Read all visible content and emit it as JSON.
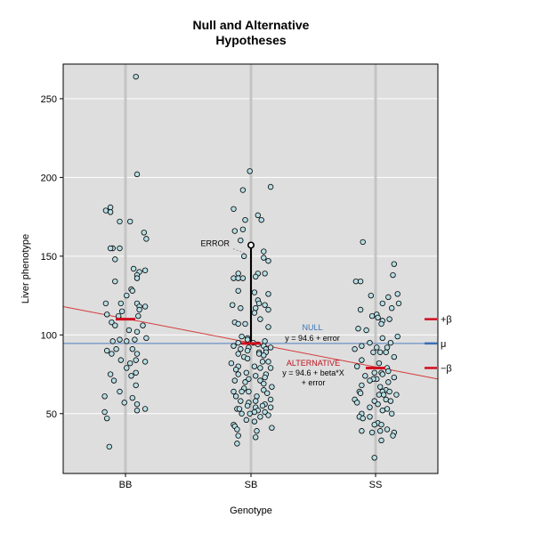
{
  "chart_data": {
    "type": "scatter",
    "title_lines": [
      "Null and Alternative",
      "Hypotheses"
    ],
    "xlabel": "Genotype",
    "ylabel": "Liver phenotype",
    "categories": [
      "BB",
      "SB",
      "SS"
    ],
    "ylim": [
      12,
      272
    ],
    "y_ticks": [
      50,
      100,
      150,
      200,
      250
    ],
    "grid": true,
    "colors": {
      "panel": "#dedede",
      "grid": "#ffffff",
      "category_line": "#c4c4c4",
      "point_fill": "#b6dde4",
      "point_stroke": "#000000",
      "null_line": "#4f7fc0",
      "alt_line": "#d63a3a",
      "group_mean": "#d10f1f",
      "null_text": "#3c74b7",
      "alt_text": "#c0141f"
    },
    "null_model": {
      "y": 94.6,
      "label": "NULL",
      "equation": "y = 94.6 + error"
    },
    "alternative_model": {
      "label": "ALTERNATIVE",
      "equation_line1": "y = 94.6 + beta*X",
      "equation_line2": "+ error",
      "line_start_y": 118,
      "line_end_y": 72
    },
    "group_means": [
      {
        "category": "BB",
        "y": 110
      },
      {
        "category": "SB",
        "y": 94.6
      },
      {
        "category": "SS",
        "y": 79
      }
    ],
    "error_example": {
      "label": "ERROR",
      "category": "SB",
      "x_offset": 0,
      "y": 157,
      "to_y": 94.6
    },
    "right_markers": [
      {
        "label": "+β",
        "y": 110,
        "color": "#d10f1f"
      },
      {
        "label": "μ",
        "y": 94.6,
        "color": "#3a6fb5"
      },
      {
        "label": "−β",
        "y": 79,
        "color": "#d10f1f"
      }
    ],
    "series": [
      {
        "category": "BB",
        "points": [
          [
            0.09,
            264
          ],
          [
            0.1,
            202
          ],
          [
            -0.13,
            181
          ],
          [
            -0.13,
            178
          ],
          [
            -0.17,
            179
          ],
          [
            -0.05,
            172
          ],
          [
            0.04,
            172
          ],
          [
            0.16,
            165
          ],
          [
            0.18,
            161
          ],
          [
            -0.05,
            155
          ],
          [
            -0.11,
            155
          ],
          [
            -0.13,
            155
          ],
          [
            -0.09,
            148
          ],
          [
            0.07,
            142
          ],
          [
            0.17,
            141
          ],
          [
            0.12,
            140
          ],
          [
            0.1,
            138
          ],
          [
            0.1,
            136
          ],
          [
            -0.09,
            134
          ],
          [
            0.05,
            129
          ],
          [
            0.06,
            128
          ],
          [
            0.01,
            125
          ],
          [
            -0.17,
            120
          ],
          [
            0.1,
            120
          ],
          [
            -0.04,
            120
          ],
          [
            0.17,
            118
          ],
          [
            0.12,
            118
          ],
          [
            0.12,
            116
          ],
          [
            -0.03,
            115
          ],
          [
            -0.16,
            113
          ],
          [
            0.11,
            112
          ],
          [
            -0.06,
            112
          ],
          [
            -0.12,
            108
          ],
          [
            0.15,
            106
          ],
          [
            -0.09,
            106
          ],
          [
            0.03,
            103
          ],
          [
            0.1,
            102
          ],
          [
            0.18,
            98
          ],
          [
            -0.05,
            97
          ],
          [
            0.08,
            97
          ],
          [
            0.01,
            96
          ],
          [
            -0.11,
            96
          ],
          [
            -0.08,
            91
          ],
          [
            0.06,
            91
          ],
          [
            -0.16,
            90
          ],
          [
            -0.12,
            88
          ],
          [
            0.1,
            88
          ],
          [
            0.09,
            84
          ],
          [
            -0.04,
            84
          ],
          [
            0.17,
            83
          ],
          [
            0.04,
            82
          ],
          [
            0.01,
            79
          ],
          [
            0.09,
            76
          ],
          [
            -0.13,
            75
          ],
          [
            0.05,
            74
          ],
          [
            -0.1,
            71
          ],
          [
            0.09,
            68
          ],
          [
            -0.05,
            64
          ],
          [
            -0.18,
            61
          ],
          [
            0.06,
            60
          ],
          [
            -0.01,
            57
          ],
          [
            0.1,
            56
          ],
          [
            0.17,
            53
          ],
          [
            0.1,
            52
          ],
          [
            -0.18,
            51
          ],
          [
            -0.16,
            47
          ],
          [
            -0.14,
            29
          ]
        ]
      },
      {
        "category": "SB",
        "points": [
          [
            -0.01,
            204
          ],
          [
            0.17,
            194
          ],
          [
            -0.07,
            192
          ],
          [
            -0.15,
            180
          ],
          [
            0.06,
            176
          ],
          [
            0.09,
            173
          ],
          [
            -0.05,
            173
          ],
          [
            -0.07,
            167
          ],
          [
            -0.14,
            166
          ],
          [
            -0.09,
            160
          ],
          [
            0.11,
            153
          ],
          [
            -0.06,
            150
          ],
          [
            0.11,
            149
          ],
          [
            0.15,
            147
          ],
          [
            0.12,
            139
          ],
          [
            -0.11,
            139
          ],
          [
            0.06,
            139
          ],
          [
            0.04,
            137
          ],
          [
            -0.15,
            136
          ],
          [
            -0.11,
            136
          ],
          [
            -0.07,
            136
          ],
          [
            -0.11,
            128
          ],
          [
            0.03,
            127
          ],
          [
            0.15,
            126
          ],
          [
            0.06,
            122
          ],
          [
            0.07,
            120
          ],
          [
            0.12,
            119
          ],
          [
            -0.16,
            119
          ],
          [
            -0.09,
            117
          ],
          [
            0.04,
            117
          ],
          [
            0.15,
            116
          ],
          [
            0.03,
            114
          ],
          [
            0.08,
            110
          ],
          [
            -0.14,
            108
          ],
          [
            -0.11,
            107
          ],
          [
            -0.05,
            107
          ],
          [
            0.15,
            105
          ],
          [
            -0.08,
            99
          ],
          [
            -0.03,
            98
          ],
          [
            -0.03,
            97
          ],
          [
            0.12,
            96
          ],
          [
            -0.11,
            95
          ],
          [
            0.02,
            95
          ],
          [
            0.06,
            94
          ],
          [
            -0.15,
            93
          ],
          [
            0.11,
            93
          ],
          [
            0.17,
            92
          ],
          [
            -0.02,
            92
          ],
          [
            -0.09,
            91
          ],
          [
            0.13,
            91
          ],
          [
            -0.03,
            90
          ],
          [
            0.07,
            89
          ],
          [
            0.13,
            89
          ],
          [
            -0.11,
            88
          ],
          [
            0.07,
            88
          ],
          [
            0.11,
            87
          ],
          [
            -0.06,
            86
          ],
          [
            -0.03,
            85
          ],
          [
            0.1,
            83
          ],
          [
            0.15,
            83
          ],
          [
            -0.17,
            82
          ],
          [
            0.03,
            80
          ],
          [
            -0.11,
            80
          ],
          [
            0.08,
            79
          ],
          [
            0.17,
            79
          ],
          [
            -0.13,
            78
          ],
          [
            -0.04,
            76
          ],
          [
            -0.11,
            75
          ],
          [
            0.13,
            75
          ],
          [
            0.04,
            74
          ],
          [
            0.12,
            73
          ],
          [
            -0.02,
            72
          ],
          [
            -0.14,
            71
          ],
          [
            0.08,
            71
          ],
          [
            -0.05,
            70
          ],
          [
            0.11,
            69
          ],
          [
            0.18,
            67
          ],
          [
            -0.06,
            66
          ],
          [
            0.11,
            65
          ],
          [
            -0.15,
            64
          ],
          [
            -0.08,
            64
          ],
          [
            -0.02,
            64
          ],
          [
            0.14,
            63
          ],
          [
            -0.13,
            61
          ],
          [
            0.05,
            61
          ],
          [
            0.17,
            59
          ],
          [
            -0.09,
            58
          ],
          [
            0.04,
            58
          ],
          [
            -0.02,
            57
          ],
          [
            0.12,
            56
          ],
          [
            0.1,
            55
          ],
          [
            -0.03,
            55
          ],
          [
            0.17,
            54
          ],
          [
            0.04,
            54
          ],
          [
            -0.12,
            53
          ],
          [
            -0.1,
            53
          ],
          [
            0.06,
            52
          ],
          [
            0.03,
            51
          ],
          [
            0.12,
            51
          ],
          [
            -0.08,
            50
          ],
          [
            -0.01,
            50
          ],
          [
            0.15,
            49
          ],
          [
            0.08,
            48
          ],
          [
            -0.04,
            46
          ],
          [
            0.03,
            45
          ],
          [
            -0.15,
            43
          ],
          [
            -0.14,
            42
          ],
          [
            0.18,
            41
          ],
          [
            -0.12,
            40
          ],
          [
            0.05,
            39
          ],
          [
            -0.11,
            36
          ],
          [
            0.04,
            35
          ],
          [
            -0.12,
            31
          ]
        ]
      },
      {
        "category": "SS",
        "points": [
          [
            -0.11,
            159
          ],
          [
            0.16,
            145
          ],
          [
            0.15,
            138
          ],
          [
            -0.17,
            134
          ],
          [
            -0.13,
            134
          ],
          [
            0.19,
            126
          ],
          [
            -0.04,
            125
          ],
          [
            0.11,
            124
          ],
          [
            0.06,
            120
          ],
          [
            0.2,
            120
          ],
          [
            0.14,
            117
          ],
          [
            -0.13,
            116
          ],
          [
            0.01,
            113
          ],
          [
            -0.03,
            112
          ],
          [
            0.02,
            111
          ],
          [
            0.12,
            110
          ],
          [
            0.06,
            109
          ],
          [
            0.05,
            107
          ],
          [
            -0.15,
            104
          ],
          [
            -0.08,
            103
          ],
          [
            0.19,
            99
          ],
          [
            0.06,
            98
          ],
          [
            -0.05,
            95
          ],
          [
            0.13,
            95
          ],
          [
            -0.12,
            93
          ],
          [
            0.01,
            92
          ],
          [
            0.1,
            92
          ],
          [
            -0.18,
            91
          ],
          [
            0.09,
            89
          ],
          [
            -0.02,
            89
          ],
          [
            0.04,
            89
          ],
          [
            0.16,
            86
          ],
          [
            -0.12,
            84
          ],
          [
            0.03,
            82
          ],
          [
            -0.16,
            80
          ],
          [
            0.1,
            79
          ],
          [
            0.11,
            77
          ],
          [
            -0.01,
            76
          ],
          [
            0.05,
            76
          ],
          [
            0.06,
            75
          ],
          [
            -0.09,
            74
          ],
          [
            0.16,
            73
          ],
          [
            0.01,
            72
          ],
          [
            -0.02,
            72
          ],
          [
            -0.05,
            71
          ],
          [
            0.11,
            70
          ],
          [
            -0.12,
            68
          ],
          [
            0.04,
            67
          ],
          [
            0.09,
            65
          ],
          [
            -0.14,
            64
          ],
          [
            0.06,
            64
          ],
          [
            0.12,
            64
          ],
          [
            -0.13,
            63
          ],
          [
            0.07,
            62
          ],
          [
            0.18,
            62
          ],
          [
            0.03,
            62
          ],
          [
            -0.18,
            59
          ],
          [
            0.09,
            59
          ],
          [
            0.13,
            58
          ],
          [
            -0.01,
            58
          ],
          [
            -0.16,
            57
          ],
          [
            0.02,
            56
          ],
          [
            -0.05,
            54
          ],
          [
            0.1,
            53
          ],
          [
            0.06,
            52
          ],
          [
            -0.12,
            50
          ],
          [
            0.14,
            50
          ],
          [
            -0.05,
            48
          ],
          [
            -0.14,
            48
          ],
          [
            -0.11,
            47
          ],
          [
            0.02,
            44
          ],
          [
            0.05,
            43
          ],
          [
            -0.01,
            43
          ],
          [
            0.1,
            40
          ],
          [
            0.04,
            39
          ],
          [
            -0.12,
            39
          ],
          [
            -0.03,
            38
          ],
          [
            0.16,
            38
          ],
          [
            0.15,
            36
          ],
          [
            0.05,
            33
          ],
          [
            -0.01,
            22
          ]
        ]
      }
    ]
  }
}
